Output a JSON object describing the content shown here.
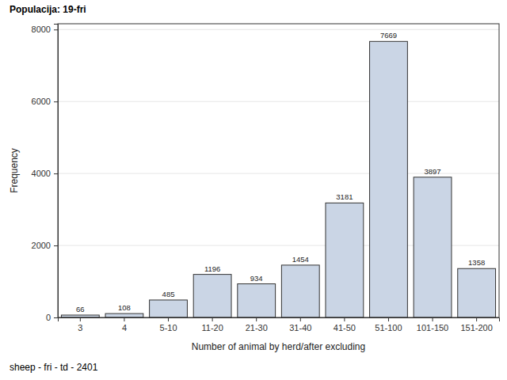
{
  "chart_data": {
    "type": "bar",
    "title": "Populacija: 19-fri",
    "x_label": "Number of animal by herd/after excluding",
    "y_label": "Frequency",
    "annotations": [
      "sheep - fri - td - 2401"
    ],
    "categories": [
      "3",
      "4",
      "5-10",
      "11-20",
      "21-30",
      "31-40",
      "41-50",
      "51-100",
      "101-150",
      "151-200"
    ],
    "values": [
      66,
      108,
      485,
      1196,
      934,
      1454,
      3181,
      7669,
      3897,
      1358
    ],
    "color": "#cad5e5",
    "ylim": [
      0,
      8160
    ],
    "yticks": [
      0,
      2000,
      4000,
      6000,
      8000
    ],
    "grid": true,
    "data_labels": true
  }
}
